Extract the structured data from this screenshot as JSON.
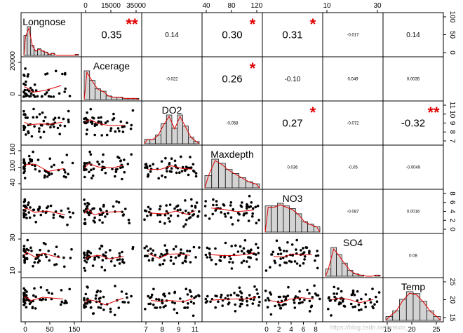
{
  "chart_data": {
    "type": "scatter-matrix",
    "variables": [
      "Longnose",
      "Acerage",
      "DO2",
      "Maxdepth",
      "NO3",
      "SO4",
      "Temp"
    ],
    "top_axes": [
      {
        "col": 1,
        "ticks": [
          "0",
          "15000",
          "35000"
        ]
      },
      {
        "col": 3,
        "ticks": [
          "40",
          "80",
          "120"
        ]
      },
      {
        "col": 5,
        "ticks": [
          "10",
          "30"
        ]
      }
    ],
    "bottom_axes": [
      {
        "col": 0,
        "ticks": [
          "0",
          "50",
          "150"
        ]
      },
      {
        "col": 2,
        "ticks": [
          "7",
          "8",
          "9",
          "11"
        ]
      },
      {
        "col": 4,
        "ticks": [
          "0",
          "2",
          "4",
          "6",
          "8"
        ]
      },
      {
        "col": 6,
        "ticks": [
          "15",
          "20",
          "25"
        ]
      }
    ],
    "left_axes": [
      {
        "row": 1,
        "ticks": [
          "0",
          "20000"
        ]
      },
      {
        "row": 3,
        "ticks": [
          "40",
          "100",
          "160"
        ]
      },
      {
        "row": 5,
        "ticks": [
          "10",
          "30"
        ]
      }
    ],
    "right_axes": [
      {
        "row": 0,
        "ticks": [
          "0",
          "50",
          "100"
        ]
      },
      {
        "row": 2,
        "ticks": [
          "7",
          "8",
          "9",
          "10",
          "11"
        ]
      },
      {
        "row": 4,
        "ticks": [
          "0",
          "2",
          "4",
          "6",
          "8"
        ]
      },
      {
        "row": 6,
        "ticks": [
          "15",
          "20",
          "25"
        ]
      }
    ],
    "correlations": [
      {
        "row": 0,
        "col": 1,
        "value": "0.35",
        "stars": "**"
      },
      {
        "row": 0,
        "col": 2,
        "value": "0.14",
        "stars": ""
      },
      {
        "row": 0,
        "col": 3,
        "value": "0.30",
        "stars": "*"
      },
      {
        "row": 0,
        "col": 4,
        "value": "0.31",
        "stars": "*"
      },
      {
        "row": 0,
        "col": 5,
        "value": "-0.017",
        "stars": ""
      },
      {
        "row": 0,
        "col": 6,
        "value": "0.14",
        "stars": ""
      },
      {
        "row": 1,
        "col": 2,
        "value": "-0.022",
        "stars": ""
      },
      {
        "row": 1,
        "col": 3,
        "value": "0.26",
        "stars": "*"
      },
      {
        "row": 1,
        "col": 4,
        "value": "-0.10",
        "stars": ""
      },
      {
        "row": 1,
        "col": 5,
        "value": "0.049",
        "stars": ""
      },
      {
        "row": 1,
        "col": 6,
        "value": "0.0035",
        "stars": ""
      },
      {
        "row": 2,
        "col": 3,
        "value": "-0.058",
        "stars": ""
      },
      {
        "row": 2,
        "col": 4,
        "value": "0.27",
        "stars": "*"
      },
      {
        "row": 2,
        "col": 5,
        "value": "-0.072",
        "stars": ""
      },
      {
        "row": 2,
        "col": 6,
        "value": "-0.32",
        "stars": "**"
      },
      {
        "row": 3,
        "col": 4,
        "value": "0.036",
        "stars": ""
      },
      {
        "row": 3,
        "col": 5,
        "value": "-0.05",
        "stars": ""
      },
      {
        "row": 3,
        "col": 6,
        "value": "-0.0049",
        "stars": ""
      },
      {
        "row": 4,
        "col": 5,
        "value": "-0.087",
        "stars": ""
      },
      {
        "row": 4,
        "col": 6,
        "value": "0.0016",
        "stars": ""
      },
      {
        "row": 5,
        "col": 6,
        "value": "0.08",
        "stars": ""
      }
    ],
    "histograms": [
      [
        18,
        26,
        9,
        4,
        6,
        4,
        3,
        1,
        2,
        0,
        0,
        0,
        0,
        0,
        0,
        1
      ],
      [
        24,
        16,
        9,
        7,
        3,
        2,
        2,
        1,
        1,
        1
      ],
      [
        2,
        2,
        4,
        9,
        13,
        7,
        13,
        8,
        3,
        1
      ],
      [
        6,
        14,
        12,
        9,
        7,
        5,
        3,
        2
      ],
      [
        10,
        10,
        11,
        10,
        9,
        7,
        4,
        3,
        2
      ],
      [
        6,
        24,
        18,
        11,
        5,
        2,
        1,
        0,
        0,
        1
      ],
      [
        2,
        5,
        11,
        15,
        14,
        10,
        5,
        2
      ]
    ]
  },
  "watermark": "https://blog.csdn.net/weixin_..."
}
